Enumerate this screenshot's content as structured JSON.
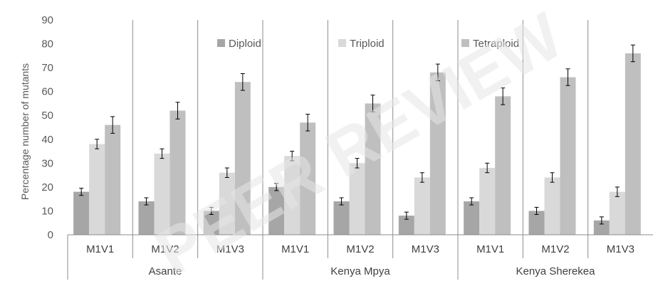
{
  "watermark": "PEER REVIEW",
  "chart_data": {
    "type": "bar",
    "title": "",
    "xlabel": "",
    "ylabel": "Percentage number of mutants",
    "ylim": [
      0,
      90
    ],
    "yticks": [
      0,
      10,
      20,
      30,
      40,
      50,
      60,
      70,
      80,
      90
    ],
    "grid": false,
    "legend_position": "top",
    "categories": [
      "M1V1",
      "M1V2",
      "M1V3",
      "M1V1",
      "M1V2",
      "M1V3",
      "M1V1",
      "M1V2",
      "M1V3"
    ],
    "groups": [
      {
        "label": "Asante",
        "span": 3
      },
      {
        "label": "Kenya Mpya",
        "span": 3
      },
      {
        "label": "Kenya Sherekea",
        "span": 3
      }
    ],
    "series": [
      {
        "name": "Diploid",
        "color": "#a6a6a6",
        "values": [
          18,
          14,
          10,
          20,
          14,
          8,
          14,
          10,
          6
        ],
        "errors": [
          1.5,
          1.5,
          1.5,
          1.5,
          1.5,
          1.5,
          1.5,
          1.5,
          1.5
        ]
      },
      {
        "name": "Triploid",
        "color": "#d9d9d9",
        "values": [
          38,
          34,
          26,
          33,
          30,
          24,
          28,
          24,
          18
        ],
        "errors": [
          2,
          2,
          2,
          2,
          2,
          2,
          2,
          2,
          2
        ]
      },
      {
        "name": "Tetraploid",
        "color": "#bfbfbf",
        "values": [
          46,
          52,
          64,
          47,
          55,
          68,
          58,
          66,
          76
        ],
        "errors": [
          3.5,
          3.5,
          3.5,
          3.5,
          3.5,
          3.5,
          3.5,
          3.5,
          3.5
        ]
      }
    ]
  }
}
